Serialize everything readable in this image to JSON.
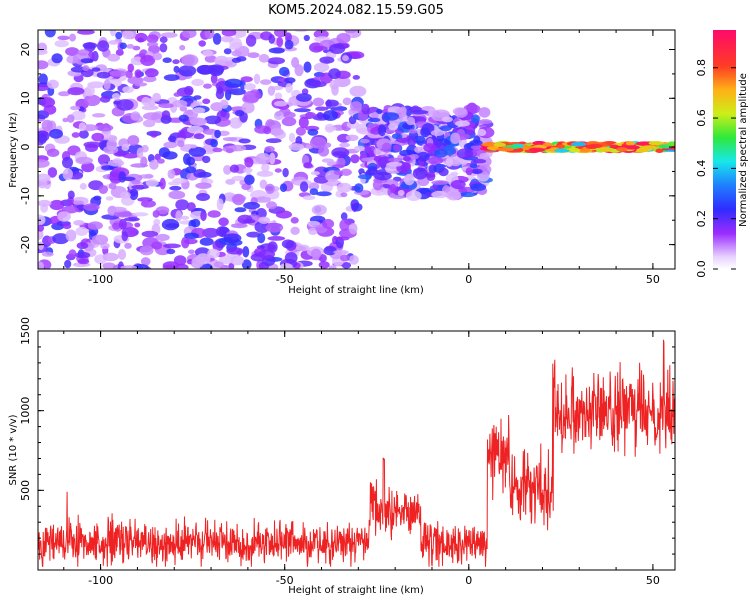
{
  "title": "KOM5.2024.082.15.59.G05",
  "colors": {
    "snr_line": "#ee2222",
    "axes": "#000000",
    "background": "#ffffff"
  },
  "chart_data": [
    {
      "type": "heatmap",
      "xlabel": "Height of straight line (km)",
      "ylabel": "Frequency (Hz)",
      "xlim": [
        -117,
        56
      ],
      "ylim": [
        -25,
        24
      ],
      "x_ticks": [
        -100,
        -50,
        0,
        50
      ],
      "x_tick_labels": [
        "-100",
        "-50",
        "0",
        "50"
      ],
      "y_ticks": [
        -20,
        -10,
        0,
        10,
        20
      ],
      "y_tick_labels": [
        "-20",
        "-10",
        "0",
        "10",
        "20"
      ],
      "colorbar": {
        "label": "Normalized spectral amplitude",
        "range": [
          0,
          0.95
        ],
        "ticks": [
          0.0,
          0.2,
          0.4,
          0.6,
          0.8
        ],
        "tick_labels": [
          "0.0",
          "0.2",
          "0.4",
          "0.6",
          "0.8"
        ],
        "colormap": "white-lavender-purple-blue-cyan-green-yellow-orange-red-magenta"
      },
      "regions": [
        {
          "x_range": [
            -117,
            -30
          ],
          "f_range": [
            -25,
            24
          ],
          "description": "scattered noise",
          "amplitude_range": [
            0.0,
            0.2
          ]
        },
        {
          "x_range": [
            -30,
            5
          ],
          "f_range": [
            -10,
            8
          ],
          "description": "clustered noise",
          "amplitude_range": [
            0.0,
            0.25
          ]
        },
        {
          "x_range": [
            5,
            56
          ],
          "f_range": [
            -1,
            1
          ],
          "description": "narrow signal band at ~0 Hz",
          "amplitude_range": [
            0.3,
            0.9
          ]
        }
      ]
    },
    {
      "type": "line",
      "xlabel": "Height of straight line (km)",
      "ylabel": "SNR (10 * v/v)",
      "xlim": [
        -117,
        56
      ],
      "ylim": [
        0,
        1500
      ],
      "x_ticks": [
        -100,
        -50,
        0,
        50
      ],
      "x_tick_labels": [
        "-100",
        "-50",
        "0",
        "50"
      ],
      "y_ticks": [
        500,
        1000,
        1500
      ],
      "y_tick_labels": [
        "500",
        "1000",
        "1500"
      ],
      "series": [
        {
          "segments": [
            {
              "x_range": [
                -117,
                -27
              ],
              "mean": 170,
              "spread": 120
            },
            {
              "x_range": [
                -27,
                -13
              ],
              "mean": 370,
              "spread": 150
            },
            {
              "x_range": [
                -13,
                5
              ],
              "mean": 160,
              "spread": 110
            },
            {
              "x_range": [
                5,
                11
              ],
              "mean": 720,
              "spread": 200
            },
            {
              "x_range": [
                11,
                23
              ],
              "mean": 520,
              "spread": 200
            },
            {
              "x_range": [
                23,
                56
              ],
              "mean": 1000,
              "spread": 220
            }
          ],
          "features": [
            {
              "x": -109,
              "value": 520
            },
            {
              "x": -23,
              "value": 710
            },
            {
              "x": 23,
              "value": 1340
            },
            {
              "x": 53,
              "value": 1500
            }
          ]
        }
      ]
    }
  ]
}
